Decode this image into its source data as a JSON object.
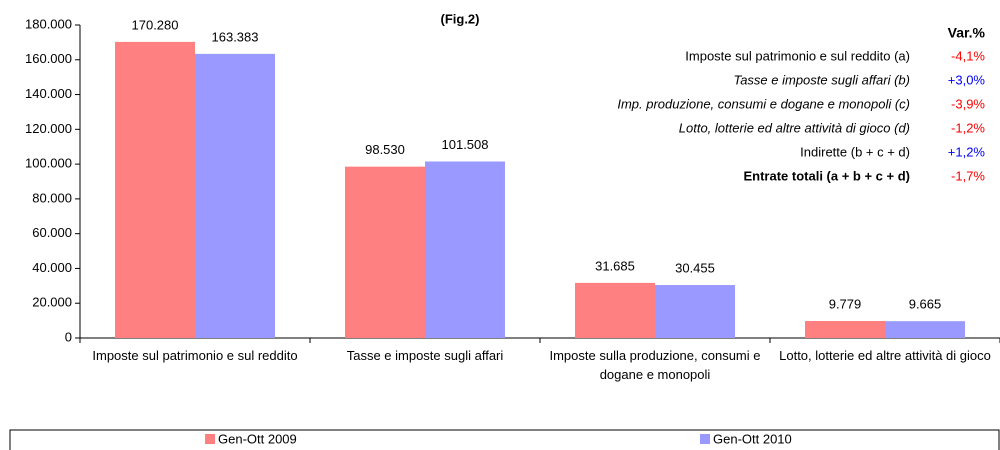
{
  "chart_data": {
    "type": "bar",
    "title": "(Fig.2)",
    "categories": [
      "Imposte sul patrimonio e sul reddito",
      "Tasse e imposte sugli affari",
      "Imposte sulla produzione, consumi e dogane e monopoli",
      "Lotto, lotterie ed altre attività di gioco"
    ],
    "series": [
      {
        "name": "Gen-Ott 2009",
        "color": "#ff8080",
        "values": [
          170280,
          98530,
          31685,
          9779
        ],
        "value_labels": [
          "170.280",
          "98.530",
          "31.685",
          "9.779"
        ]
      },
      {
        "name": "Gen-Ott 2010",
        "color": "#9999ff",
        "values": [
          163383,
          101508,
          30455,
          9665
        ],
        "value_labels": [
          "163.383",
          "101.508",
          "30.455",
          "9.665"
        ]
      }
    ],
    "ylim": [
      0,
      180000
    ],
    "yticks": [
      0,
      {
        "value": 20000,
        "label": "20.000"
      },
      {
        "value": 40000,
        "label": "40.000"
      },
      {
        "value": 60000,
        "label": "60.000"
      },
      {
        "value": 80000,
        "label": "80.000"
      },
      {
        "value": 100000,
        "label": "100.000"
      },
      {
        "value": 120000,
        "label": "120.000"
      },
      {
        "value": 140000,
        "label": "140.000"
      },
      {
        "value": 160000,
        "label": "160.000"
      },
      {
        "value": 180000,
        "label": "180.000"
      }
    ],
    "grid": false,
    "annotation": {
      "header": "Var.%",
      "rows": [
        {
          "label": "Imposte sul patrimonio e sul reddito (a)",
          "value": "-4,1%",
          "color": "#ff0000",
          "style": "normal"
        },
        {
          "label": "Tasse e imposte sugli affari (b)",
          "value": "+3,0%",
          "color": "#0000ff",
          "style": "italic"
        },
        {
          "label": "Imp. produzione, consumi e dogane e monopoli (c)",
          "value": "-3,9%",
          "color": "#ff0000",
          "style": "italic"
        },
        {
          "label": "Lotto, lotterie ed altre attività di gioco (d)",
          "value": "-1,2%",
          "color": "#ff0000",
          "style": "italic"
        },
        {
          "label": "Indirette (b + c + d)",
          "value": "+1,2%",
          "color": "#0000ff",
          "style": "normal"
        },
        {
          "label": "Entrate totali (a + b + c + d)",
          "value": "-1,7%",
          "color": "#ff0000",
          "style": "bold"
        }
      ]
    }
  }
}
